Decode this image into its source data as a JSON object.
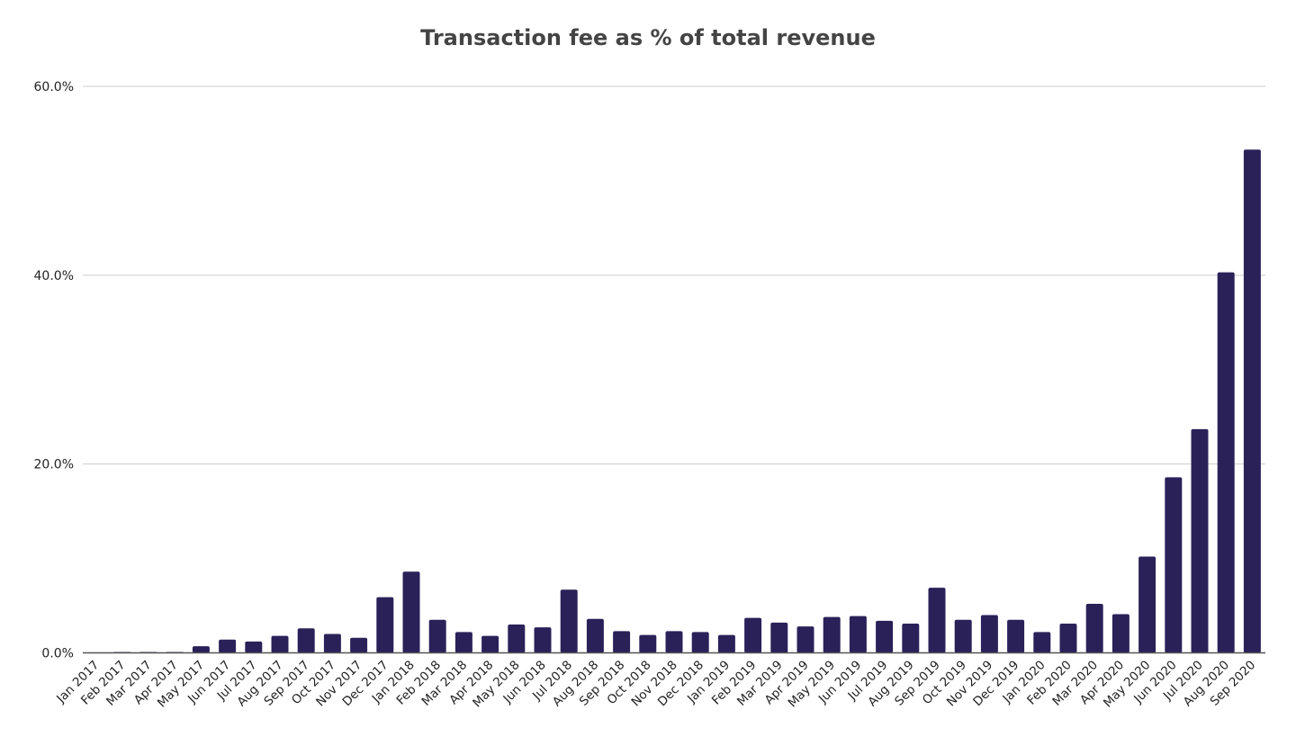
{
  "chart_data": {
    "type": "bar",
    "title": "Transaction fee as % of total revenue",
    "xlabel": "",
    "ylabel": "",
    "ylim": [
      0,
      60
    ],
    "yticks": [
      0,
      20,
      40,
      60
    ],
    "ytick_labels": [
      "0.0%",
      "20.0%",
      "40.0%",
      "60.0%"
    ],
    "grid": true,
    "legend": "none",
    "bar_color": "#2a2159",
    "categories": [
      "Jan 2017",
      "Feb 2017",
      "Mar 2017",
      "Apr 2017",
      "May 2017",
      "Jun 2017",
      "Jul 2017",
      "Aug 2017",
      "Sep 2017",
      "Oct 2017",
      "Nov 2017",
      "Dec 2017",
      "Jan 2018",
      "Feb 2018",
      "Mar 2018",
      "Apr 2018",
      "May 2018",
      "Jun 2018",
      "Jul 2018",
      "Aug 2018",
      "Sep 2018",
      "Oct 2018",
      "Nov 2018",
      "Dec 2018",
      "Jan 2019",
      "Feb 2019",
      "Mar 2019",
      "Apr 2019",
      "May 2019",
      "Jun 2019",
      "Jul 2019",
      "Aug 2019",
      "Sep 2019",
      "Oct 2019",
      "Nov 2019",
      "Dec 2019",
      "Jan 2020",
      "Feb 2020",
      "Mar 2020",
      "Apr 2020",
      "May 2020",
      "Jun 2020",
      "Jul 2020",
      "Aug 2020",
      "Sep 2020"
    ],
    "values": [
      0.0,
      0.1,
      0.1,
      0.1,
      0.7,
      1.4,
      1.2,
      1.8,
      2.6,
      2.0,
      1.6,
      5.9,
      8.6,
      3.5,
      2.2,
      1.8,
      3.0,
      2.7,
      6.7,
      3.6,
      2.3,
      1.9,
      2.3,
      2.2,
      1.9,
      3.7,
      3.2,
      2.8,
      3.8,
      3.9,
      3.4,
      3.1,
      6.9,
      3.5,
      4.0,
      3.5,
      2.2,
      3.1,
      5.2,
      4.1,
      10.2,
      18.6,
      23.7,
      40.3,
      53.3
    ]
  }
}
